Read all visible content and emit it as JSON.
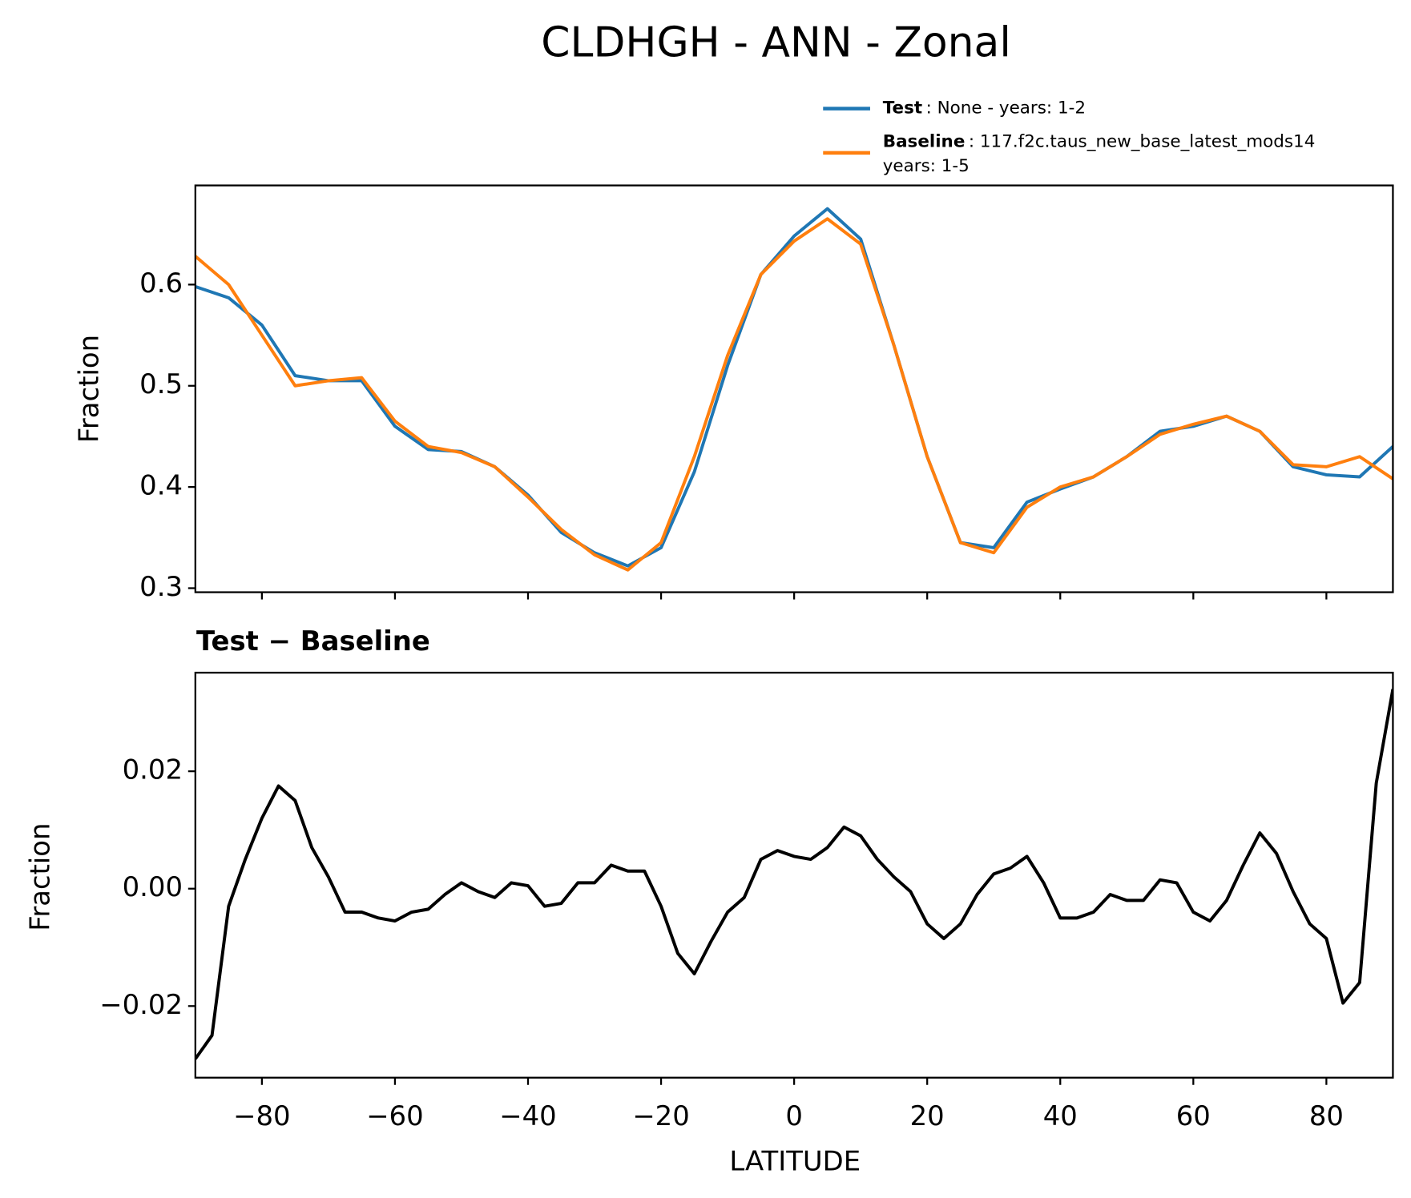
{
  "chart_data": [
    {
      "type": "line",
      "title": "CLDHGH - ANN - Zonal",
      "ylabel": "Fraction",
      "x": [
        -90,
        -85,
        -80,
        -75,
        -70,
        -65,
        -60,
        -55,
        -50,
        -45,
        -40,
        -35,
        -30,
        -25,
        -20,
        -15,
        -10,
        -5,
        0,
        5,
        10,
        15,
        20,
        25,
        30,
        35,
        40,
        45,
        50,
        55,
        60,
        65,
        70,
        75,
        80,
        85,
        90
      ],
      "series": [
        {
          "name": "Test",
          "description": [
            ": None - years: 1-2"
          ],
          "color": "#1f77b4",
          "values": [
            0.598,
            0.587,
            0.56,
            0.51,
            0.505,
            0.505,
            0.46,
            0.437,
            0.435,
            0.42,
            0.392,
            0.355,
            0.335,
            0.322,
            0.34,
            0.415,
            0.52,
            0.61,
            0.648,
            0.675,
            0.645,
            0.54,
            0.43,
            0.345,
            0.34,
            0.385,
            0.398,
            0.41,
            0.43,
            0.455,
            0.46,
            0.47,
            0.455,
            0.42,
            0.412,
            0.41,
            0.44
          ]
        },
        {
          "name": "Baseline",
          "description": [
            ": 117.f2c.taus_new_base_latest_mods14",
            "years: 1-5"
          ],
          "color": "#ff7f0e",
          "values": [
            0.628,
            0.6,
            0.55,
            0.5,
            0.505,
            0.508,
            0.465,
            0.44,
            0.434,
            0.42,
            0.39,
            0.358,
            0.333,
            0.318,
            0.345,
            0.43,
            0.53,
            0.61,
            0.643,
            0.665,
            0.64,
            0.54,
            0.43,
            0.345,
            0.335,
            0.38,
            0.4,
            0.41,
            0.43,
            0.452,
            0.462,
            0.47,
            0.455,
            0.422,
            0.42,
            0.43,
            0.408
          ]
        }
      ],
      "xlim": [
        -90,
        90
      ],
      "ylim": [
        0.296,
        0.698
      ],
      "yticks": [
        0.3,
        0.4,
        0.5,
        0.6
      ]
    },
    {
      "type": "line",
      "title": "Test − Baseline",
      "xlabel": "LATITUDE",
      "ylabel": "Fraction",
      "x": [
        -90,
        -87.5,
        -85,
        -82.5,
        -80,
        -77.5,
        -75,
        -72.5,
        -70,
        -67.5,
        -65,
        -62.5,
        -60,
        -57.5,
        -55,
        -52.5,
        -50,
        -47.5,
        -45,
        -42.5,
        -40,
        -37.5,
        -35,
        -32.5,
        -30,
        -27.5,
        -25,
        -22.5,
        -20,
        -17.5,
        -15,
        -12.5,
        -10,
        -7.5,
        -5,
        -2.5,
        0,
        2.5,
        5,
        7.5,
        10,
        12.5,
        15,
        17.5,
        20,
        22.5,
        25,
        27.5,
        30,
        32.5,
        35,
        37.5,
        40,
        42.5,
        45,
        47.5,
        50,
        52.5,
        55,
        57.5,
        60,
        62.5,
        65,
        67.5,
        70,
        72.5,
        75,
        77.5,
        80,
        82.5,
        85,
        87.5,
        90
      ],
      "series": [
        {
          "color": "#000000",
          "values": [
            -0.029,
            -0.025,
            -0.003,
            0.005,
            0.012,
            0.0175,
            0.015,
            0.007,
            0.002,
            -0.004,
            -0.004,
            -0.005,
            -0.0055,
            -0.004,
            -0.0035,
            -0.001,
            0.001,
            -0.0005,
            -0.0015,
            0.001,
            0.0005,
            -0.003,
            -0.0025,
            0.001,
            0.001,
            0.004,
            0.003,
            0.003,
            -0.003,
            -0.011,
            -0.0145,
            -0.009,
            -0.004,
            -0.0015,
            0.005,
            0.0065,
            0.0055,
            0.005,
            0.007,
            0.0105,
            0.009,
            0.005,
            0.002,
            -0.0005,
            -0.006,
            -0.0085,
            -0.006,
            -0.001,
            0.0025,
            0.0035,
            0.0055,
            0.001,
            -0.005,
            -0.005,
            -0.004,
            -0.001,
            -0.002,
            -0.002,
            0.0015,
            0.001,
            -0.004,
            -0.0055,
            -0.002,
            0.004,
            0.0095,
            0.006,
            -0.0005,
            -0.006,
            -0.0085,
            -0.0195,
            -0.016,
            0.018,
            0.034
          ]
        }
      ],
      "xlim": [
        -90,
        90
      ],
      "ylim": [
        -0.0322,
        0.0368
      ],
      "xticks": [
        {
          "value": -80,
          "label": "−80"
        },
        {
          "value": -60,
          "label": "−60"
        },
        {
          "value": -40,
          "label": "−40"
        },
        {
          "value": -20,
          "label": "−20"
        },
        0,
        20,
        40,
        60,
        80
      ],
      "yticks": [
        {
          "value": -0.02,
          "label": "−0.02"
        },
        {
          "value": 0,
          "label": "0.00"
        },
        {
          "value": 0.02,
          "label": "0.02"
        }
      ]
    }
  ]
}
